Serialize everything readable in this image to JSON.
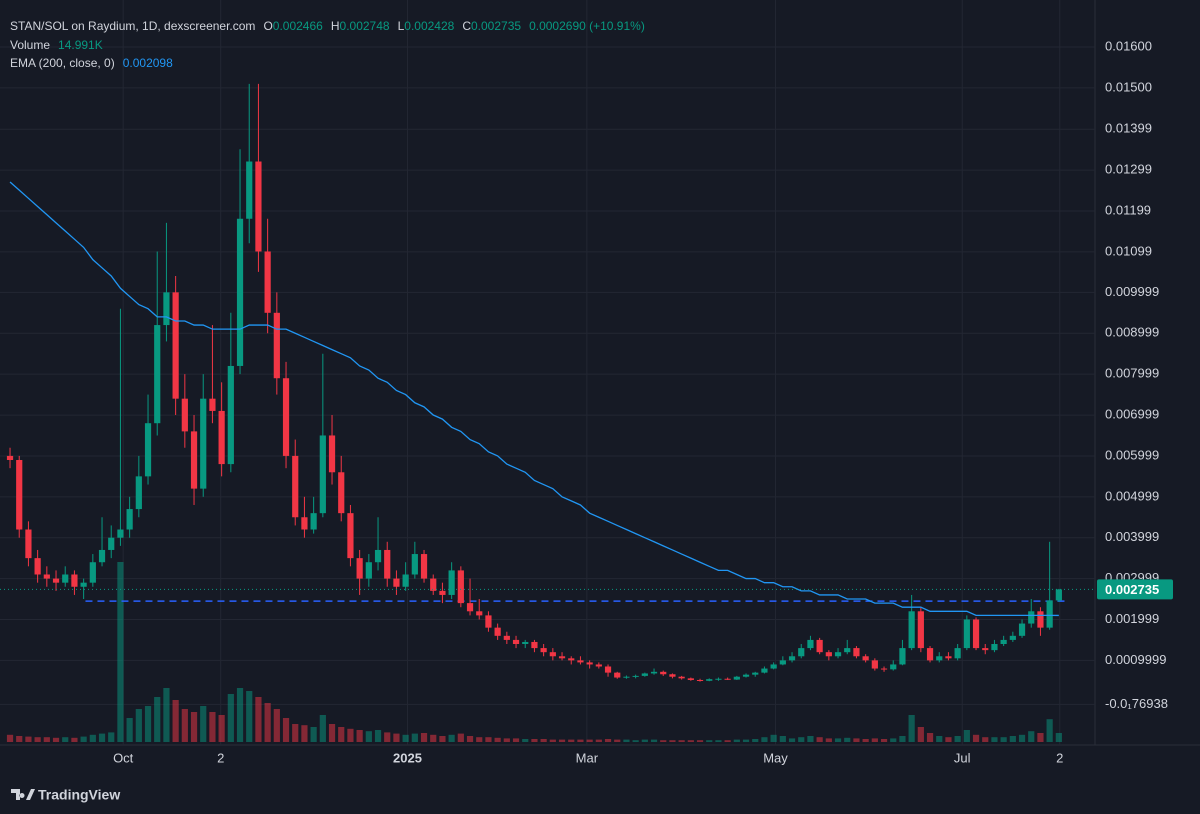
{
  "chart_data": {
    "type": "candlestick",
    "title": "STAN/SOL on Raydium, 1D, dexscreener.com",
    "ohlc_labels": [
      "O",
      "H",
      "L",
      "C"
    ],
    "change_label": "0.0002690 (+10.91%)",
    "up_color": "#089981",
    "down_color": "#f23645",
    "open": [
      0.006,
      0.0059,
      0.0042,
      0.0035,
      0.0031,
      0.003,
      0.0029,
      0.0031,
      0.0028,
      0.0029,
      0.0034,
      0.0037,
      0.004,
      0.0042,
      0.0047,
      0.0055,
      0.0068,
      0.0092,
      0.01,
      0.0074,
      0.0066,
      0.0052,
      0.0074,
      0.0071,
      0.0058,
      0.0082,
      0.0118,
      0.0132,
      0.011,
      0.0095,
      0.0079,
      0.006,
      0.0045,
      0.0042,
      0.0046,
      0.0065,
      0.0056,
      0.0046,
      0.0035,
      0.003,
      0.0034,
      0.0037,
      0.003,
      0.0028,
      0.0031,
      0.0036,
      0.003,
      0.0027,
      0.0026,
      0.0032,
      0.0024,
      0.0022,
      0.0021,
      0.0018,
      0.0016,
      0.0015,
      0.0014,
      0.00145,
      0.0013,
      0.0012,
      0.0011,
      0.00105,
      0.001,
      0.00095,
      0.0009,
      0.00085,
      0.0007,
      0.00058,
      0.0006,
      0.00062,
      0.00068,
      0.00072,
      0.00066,
      0.0006,
      0.00056,
      0.00052,
      0.0005,
      0.00054,
      0.00055,
      0.00053,
      0.0006,
      0.00065,
      0.0007,
      0.0008,
      0.0009,
      0.001,
      0.0011,
      0.0013,
      0.0015,
      0.0012,
      0.0011,
      0.0012,
      0.0013,
      0.0011,
      0.001,
      0.0008,
      0.00078,
      0.0009,
      0.0013,
      0.0022,
      0.0013,
      0.001,
      0.0011,
      0.00105,
      0.0013,
      0.002,
      0.0013,
      0.00125,
      0.0014,
      0.0015,
      0.0016,
      0.0019,
      0.0022,
      0.0018,
      0.002466
    ],
    "high": [
      0.0062,
      0.006,
      0.0044,
      0.0037,
      0.0033,
      0.0032,
      0.0033,
      0.0032,
      0.003,
      0.0036,
      0.0045,
      0.0043,
      0.0096,
      0.005,
      0.006,
      0.0075,
      0.011,
      0.0117,
      0.0104,
      0.008,
      0.007,
      0.008,
      0.0092,
      0.0078,
      0.0095,
      0.0135,
      0.0151,
      0.0151,
      0.0118,
      0.01,
      0.0083,
      0.0064,
      0.005,
      0.005,
      0.0085,
      0.007,
      0.006,
      0.0048,
      0.0037,
      0.0036,
      0.0045,
      0.0039,
      0.0032,
      0.0034,
      0.0039,
      0.0037,
      0.0031,
      0.0029,
      0.0034,
      0.0033,
      0.003,
      0.0025,
      0.0022,
      0.0019,
      0.0017,
      0.0016,
      0.0015,
      0.0015,
      0.0014,
      0.0013,
      0.0012,
      0.0011,
      0.0011,
      0.001,
      0.00095,
      0.0009,
      0.00072,
      0.00063,
      0.00065,
      0.0007,
      0.0008,
      0.00075,
      0.00068,
      0.00062,
      0.00058,
      0.00055,
      0.00056,
      0.00058,
      0.00058,
      0.00062,
      0.00068,
      0.00072,
      0.00085,
      0.00095,
      0.0011,
      0.0012,
      0.0014,
      0.0016,
      0.00155,
      0.00125,
      0.0013,
      0.0015,
      0.00135,
      0.00115,
      0.00105,
      0.00085,
      0.001,
      0.0015,
      0.0026,
      0.0023,
      0.00135,
      0.0012,
      0.0012,
      0.0014,
      0.0021,
      0.00205,
      0.0014,
      0.0015,
      0.0016,
      0.0017,
      0.002,
      0.0025,
      0.0023,
      0.0039,
      0.002748
    ],
    "low": [
      0.0057,
      0.004,
      0.0033,
      0.0029,
      0.0028,
      0.0027,
      0.0028,
      0.0026,
      0.0025,
      0.0028,
      0.0033,
      0.0035,
      0.0038,
      0.004,
      0.0045,
      0.0053,
      0.0065,
      0.0088,
      0.007,
      0.0062,
      0.0048,
      0.005,
      0.0068,
      0.0055,
      0.0056,
      0.008,
      0.0112,
      0.0105,
      0.009,
      0.0075,
      0.0057,
      0.0043,
      0.004,
      0.0041,
      0.0045,
      0.0053,
      0.0044,
      0.0033,
      0.0026,
      0.0028,
      0.0032,
      0.0028,
      0.0026,
      0.0027,
      0.003,
      0.0029,
      0.0026,
      0.0024,
      0.0025,
      0.0023,
      0.0021,
      0.002,
      0.0017,
      0.0015,
      0.0014,
      0.0013,
      0.0013,
      0.0012,
      0.0011,
      0.001,
      0.001,
      0.0009,
      0.0009,
      0.0008,
      0.0008,
      0.0006,
      0.00055,
      0.00055,
      0.00056,
      0.0006,
      0.00065,
      0.00062,
      0.00056,
      0.00053,
      0.0005,
      0.00048,
      0.00049,
      0.0005,
      0.00052,
      0.00052,
      0.00058,
      0.0006,
      0.00068,
      0.00078,
      0.00088,
      0.00095,
      0.00105,
      0.00125,
      0.00115,
      0.001,
      0.00105,
      0.00115,
      0.00105,
      0.00095,
      0.00075,
      0.00072,
      0.00075,
      0.00088,
      0.00125,
      0.0012,
      0.00095,
      0.00095,
      0.001,
      0.001,
      0.00125,
      0.00125,
      0.00115,
      0.0012,
      0.00135,
      0.00145,
      0.00155,
      0.0018,
      0.0016,
      0.00175,
      0.002428
    ],
    "close": [
      0.0059,
      0.0042,
      0.0035,
      0.0031,
      0.003,
      0.0029,
      0.0031,
      0.0028,
      0.0029,
      0.0034,
      0.0037,
      0.004,
      0.0042,
      0.0047,
      0.0055,
      0.0068,
      0.0092,
      0.01,
      0.0074,
      0.0066,
      0.0052,
      0.0074,
      0.0071,
      0.0058,
      0.0082,
      0.0118,
      0.0132,
      0.011,
      0.0095,
      0.0079,
      0.006,
      0.0045,
      0.0042,
      0.0046,
      0.0065,
      0.0056,
      0.0046,
      0.0035,
      0.003,
      0.0034,
      0.0037,
      0.003,
      0.0028,
      0.0031,
      0.0036,
      0.003,
      0.0027,
      0.0026,
      0.0032,
      0.0024,
      0.0022,
      0.0021,
      0.0018,
      0.0016,
      0.0015,
      0.0014,
      0.00145,
      0.0013,
      0.0012,
      0.0011,
      0.00105,
      0.001,
      0.00095,
      0.0009,
      0.00085,
      0.0007,
      0.00058,
      0.0006,
      0.00062,
      0.00068,
      0.00072,
      0.00066,
      0.0006,
      0.00056,
      0.00052,
      0.0005,
      0.00054,
      0.00055,
      0.00053,
      0.0006,
      0.00065,
      0.0007,
      0.0008,
      0.0009,
      0.001,
      0.0011,
      0.0013,
      0.0015,
      0.0012,
      0.0011,
      0.0012,
      0.0013,
      0.0011,
      0.001,
      0.0008,
      0.00078,
      0.0009,
      0.0013,
      0.0022,
      0.0013,
      0.001,
      0.0011,
      0.00105,
      0.0013,
      0.002,
      0.0013,
      0.00125,
      0.0014,
      0.0015,
      0.0016,
      0.0019,
      0.0022,
      0.0018,
      0.002466,
      0.002735
    ],
    "volume": {
      "name": "Volume",
      "last_value_label": "14.991K",
      "values": [
        12,
        10,
        9,
        8,
        8,
        7,
        8,
        7,
        9,
        12,
        14,
        16,
        300,
        40,
        55,
        60,
        75,
        90,
        70,
        55,
        50,
        60,
        50,
        45,
        80,
        90,
        85,
        75,
        65,
        55,
        40,
        30,
        28,
        25,
        45,
        30,
        25,
        22,
        20,
        18,
        20,
        16,
        14,
        12,
        14,
        15,
        12,
        10,
        12,
        14,
        10,
        8,
        8,
        7,
        6,
        6,
        5,
        5,
        5,
        4,
        4,
        4,
        4,
        4,
        4,
        5,
        4,
        4,
        3,
        4,
        4,
        3,
        3,
        3,
        3,
        3,
        3,
        3,
        3,
        4,
        4,
        5,
        8,
        12,
        10,
        6,
        8,
        10,
        8,
        6,
        6,
        7,
        6,
        5,
        6,
        5,
        6,
        10,
        45,
        25,
        15,
        10,
        8,
        10,
        20,
        12,
        8,
        8,
        8,
        10,
        12,
        18,
        15,
        38,
        14.991
      ]
    },
    "ema": {
      "name": "EMA (200, close, 0)",
      "color": "#2196f3",
      "values": [
        0.0127,
        0.0125,
        0.0123,
        0.0121,
        0.0119,
        0.0117,
        0.0115,
        0.0113,
        0.0111,
        0.0108,
        0.0106,
        0.0104,
        0.0101,
        0.0099,
        0.0097,
        0.0096,
        0.0094,
        0.0094,
        0.0093,
        0.0093,
        0.0092,
        0.0092,
        0.0091,
        0.0091,
        0.0091,
        0.0091,
        0.0092,
        0.0092,
        0.0092,
        0.0091,
        0.0091,
        0.009,
        0.0089,
        0.0088,
        0.0087,
        0.0086,
        0.0085,
        0.0084,
        0.0082,
        0.0081,
        0.0079,
        0.0078,
        0.0076,
        0.0075,
        0.0073,
        0.0072,
        0.007,
        0.0069,
        0.0067,
        0.0066,
        0.0064,
        0.0063,
        0.0061,
        0.006,
        0.0058,
        0.0057,
        0.0056,
        0.0054,
        0.0053,
        0.0052,
        0.005,
        0.0049,
        0.0048,
        0.0046,
        0.0045,
        0.0044,
        0.0043,
        0.0042,
        0.0041,
        0.004,
        0.0039,
        0.0038,
        0.0037,
        0.0036,
        0.0035,
        0.0034,
        0.0033,
        0.0032,
        0.0032,
        0.0031,
        0.003,
        0.003,
        0.0029,
        0.0029,
        0.0028,
        0.0028,
        0.0027,
        0.0027,
        0.0026,
        0.0026,
        0.0026,
        0.0025,
        0.0025,
        0.0025,
        0.0024,
        0.0024,
        0.0024,
        0.0023,
        0.0023,
        0.0023,
        0.0022,
        0.0022,
        0.0022,
        0.0022,
        0.0022,
        0.0021,
        0.0021,
        0.0021,
        0.0021,
        0.0021,
        0.0021,
        0.0021,
        0.0021,
        0.0021,
        0.002098
      ]
    },
    "horizontal_line": {
      "value": 0.00245,
      "start": 8.2,
      "color": "#2962ff"
    },
    "xlim": [
      -1.09,
      117.93
    ],
    "xticks": [
      {
        "value": 12.3,
        "label": "Oct"
      },
      {
        "value": 22.9,
        "label": "2"
      },
      {
        "value": 43.2,
        "label": "2025"
      },
      {
        "value": 62.7,
        "label": "Mar"
      },
      {
        "value": 83.2,
        "label": "May"
      },
      {
        "value": 103.5,
        "label": "Jul"
      },
      {
        "value": 114.1,
        "label": "2"
      }
    ],
    "ylim": [
      -0.00107,
      0.01715
    ],
    "yticks": [
      {
        "value": 0.016,
        "label": "0.01600"
      },
      {
        "value": 0.015,
        "label": "0.01500"
      },
      0.01399,
      0.01299,
      0.01199,
      0.01099,
      0.009999,
      0.008999,
      0.007999,
      0.006999,
      0.005999,
      0.004999,
      0.003999,
      0.002999,
      0.001999,
      0.0009999,
      {
        "value": -7.69e-05,
        "label": "-0.0₁76938"
      }
    ],
    "grid": true,
    "watermark": "TradingView"
  }
}
